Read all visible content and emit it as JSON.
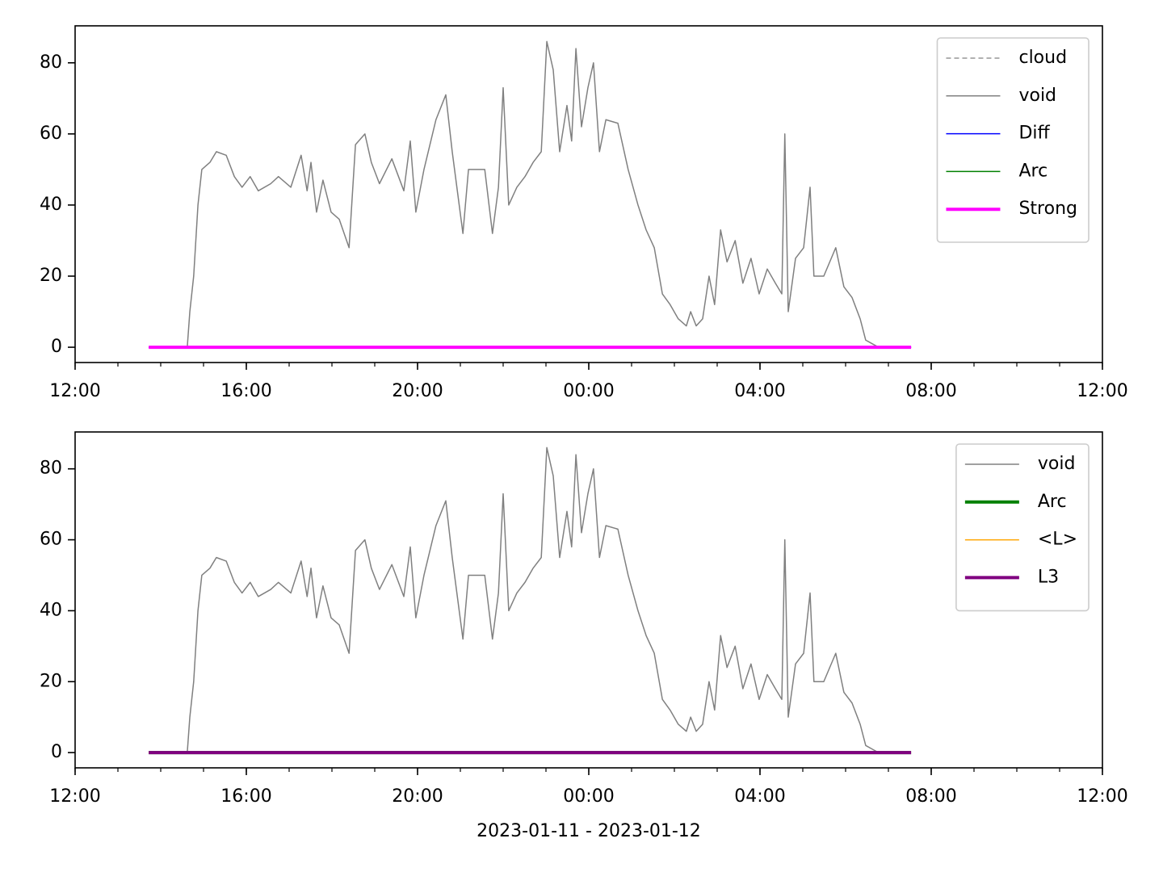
{
  "chart_data": [
    {
      "type": "line",
      "xlim": [
        12,
        36
      ],
      "ylim": [
        -4.3,
        90.4
      ],
      "xticks": [
        {
          "value": 12,
          "label": "12:00"
        },
        {
          "value": 16,
          "label": "16:00"
        },
        {
          "value": 20,
          "label": "20:00"
        },
        {
          "value": 24,
          "label": "00:00"
        },
        {
          "value": 28,
          "label": "04:00"
        },
        {
          "value": 32,
          "label": "08:00"
        },
        {
          "value": 36,
          "label": "12:00"
        }
      ],
      "yticks": [
        0,
        20,
        40,
        60,
        80
      ],
      "legend": "upper right",
      "series": [
        {
          "name": "cloud",
          "color": "#808080",
          "linestyle": "dashed",
          "linewidth": 1.2,
          "x": [
            13.72,
            31.53
          ],
          "values": [
            0,
            0
          ]
        },
        {
          "name": "void",
          "color": "#808080",
          "linestyle": "solid",
          "linewidth": 1.5,
          "x": [
            14.62,
            14.68,
            14.77,
            14.87,
            14.96,
            15.15,
            15.3,
            15.53,
            15.72,
            15.9,
            16.09,
            16.28,
            16.57,
            16.75,
            17.04,
            17.28,
            17.42,
            17.51,
            17.64,
            17.79,
            17.98,
            18.17,
            18.4,
            18.55,
            18.77,
            18.92,
            19.11,
            19.4,
            19.68,
            19.83,
            19.96,
            20.15,
            20.43,
            20.66,
            20.81,
            21.06,
            21.19,
            21.57,
            21.75,
            21.89,
            22.0,
            22.13,
            22.32,
            22.51,
            22.7,
            22.89,
            23.02,
            23.17,
            23.32,
            23.49,
            23.6,
            23.7,
            23.83,
            23.98,
            24.11,
            24.25,
            24.4,
            24.68,
            24.92,
            25.15,
            25.34,
            25.53,
            25.72,
            25.9,
            26.09,
            26.28,
            26.38,
            26.51,
            26.66,
            26.81,
            26.94,
            27.08,
            27.23,
            27.42,
            27.6,
            27.79,
            27.98,
            28.17,
            28.36,
            28.51,
            28.58,
            28.66,
            28.83,
            29.02,
            29.17,
            29.26,
            29.49,
            29.77,
            29.96,
            30.15,
            30.34,
            30.47,
            30.62,
            30.77
          ],
          "values": [
            0,
            10,
            20,
            40,
            50,
            52,
            55,
            54,
            48,
            45,
            48,
            44,
            46,
            48,
            45,
            54,
            44,
            52,
            38,
            47,
            38,
            36,
            28,
            57,
            60,
            52,
            46,
            53,
            44,
            58,
            38,
            50,
            64,
            71,
            55,
            32,
            50,
            50,
            32,
            45,
            73,
            40,
            45,
            48,
            52,
            55,
            86,
            78,
            55,
            68,
            58,
            84,
            62,
            73,
            80,
            55,
            64,
            63,
            50,
            40,
            33,
            28,
            15,
            12,
            8,
            6,
            10,
            6,
            8,
            20,
            12,
            33,
            24,
            30,
            18,
            25,
            15,
            22,
            18,
            15,
            60,
            10,
            25,
            28,
            45,
            20,
            20,
            28,
            17,
            14,
            8,
            2,
            1,
            0
          ]
        },
        {
          "name": "Diff",
          "color": "#0000ff",
          "linestyle": "solid",
          "linewidth": 1.5,
          "x": [
            13.72,
            31.53
          ],
          "values": [
            0,
            0
          ]
        },
        {
          "name": "Arc",
          "color": "#008000",
          "linestyle": "solid",
          "linewidth": 1.5,
          "x": [
            13.72,
            31.53
          ],
          "values": [
            0,
            0
          ]
        },
        {
          "name": "Strong",
          "color": "#ff00ff",
          "linestyle": "solid",
          "linewidth": 4,
          "x": [
            13.72,
            31.53
          ],
          "values": [
            0,
            0
          ]
        }
      ]
    },
    {
      "type": "line",
      "xlim": [
        12,
        36
      ],
      "ylim": [
        -4.3,
        90.4
      ],
      "xticks": [
        {
          "value": 12,
          "label": "12:00"
        },
        {
          "value": 16,
          "label": "16:00"
        },
        {
          "value": 20,
          "label": "20:00"
        },
        {
          "value": 24,
          "label": "00:00"
        },
        {
          "value": 28,
          "label": "04:00"
        },
        {
          "value": 32,
          "label": "08:00"
        },
        {
          "value": 36,
          "label": "12:00"
        }
      ],
      "yticks": [
        0,
        20,
        40,
        60,
        80
      ],
      "legend": "upper right",
      "xlabel": "2023-01-11 - 2023-01-12",
      "series": [
        {
          "name": "void",
          "color": "#808080",
          "linestyle": "solid",
          "linewidth": 1.5,
          "x": [
            14.62,
            14.68,
            14.77,
            14.87,
            14.96,
            15.15,
            15.3,
            15.53,
            15.72,
            15.9,
            16.09,
            16.28,
            16.57,
            16.75,
            17.04,
            17.28,
            17.42,
            17.51,
            17.64,
            17.79,
            17.98,
            18.17,
            18.4,
            18.55,
            18.77,
            18.92,
            19.11,
            19.4,
            19.68,
            19.83,
            19.96,
            20.15,
            20.43,
            20.66,
            20.81,
            21.06,
            21.19,
            21.57,
            21.75,
            21.89,
            22.0,
            22.13,
            22.32,
            22.51,
            22.7,
            22.89,
            23.02,
            23.17,
            23.32,
            23.49,
            23.6,
            23.7,
            23.83,
            23.98,
            24.11,
            24.25,
            24.4,
            24.68,
            24.92,
            25.15,
            25.34,
            25.53,
            25.72,
            25.9,
            26.09,
            26.28,
            26.38,
            26.51,
            26.66,
            26.81,
            26.94,
            27.08,
            27.23,
            27.42,
            27.6,
            27.79,
            27.98,
            28.17,
            28.36,
            28.51,
            28.58,
            28.66,
            28.83,
            29.02,
            29.17,
            29.26,
            29.49,
            29.77,
            29.96,
            30.15,
            30.34,
            30.47,
            30.62,
            30.77
          ],
          "values": [
            0,
            10,
            20,
            40,
            50,
            52,
            55,
            54,
            48,
            45,
            48,
            44,
            46,
            48,
            45,
            54,
            44,
            52,
            38,
            47,
            38,
            36,
            28,
            57,
            60,
            52,
            46,
            53,
            44,
            58,
            38,
            50,
            64,
            71,
            55,
            32,
            50,
            50,
            32,
            45,
            73,
            40,
            45,
            48,
            52,
            55,
            86,
            78,
            55,
            68,
            58,
            84,
            62,
            73,
            80,
            55,
            64,
            63,
            50,
            40,
            33,
            28,
            15,
            12,
            8,
            6,
            10,
            6,
            8,
            20,
            12,
            33,
            24,
            30,
            18,
            25,
            15,
            22,
            18,
            15,
            60,
            10,
            25,
            28,
            45,
            20,
            20,
            28,
            17,
            14,
            8,
            2,
            1,
            0
          ]
        },
        {
          "name": "Arc",
          "color": "#008000",
          "linestyle": "solid",
          "linewidth": 4,
          "x": [
            13.72,
            31.53
          ],
          "values": [
            0,
            0
          ]
        },
        {
          "name": "<L>",
          "color": "#ffa500",
          "linestyle": "solid",
          "linewidth": 1.5,
          "x": [
            13.72,
            31.53
          ],
          "values": [
            0,
            0
          ]
        },
        {
          "name": "L3",
          "color": "#800080",
          "linestyle": "solid",
          "linewidth": 4,
          "x": [
            13.72,
            31.53
          ],
          "values": [
            0,
            0
          ]
        }
      ]
    }
  ]
}
